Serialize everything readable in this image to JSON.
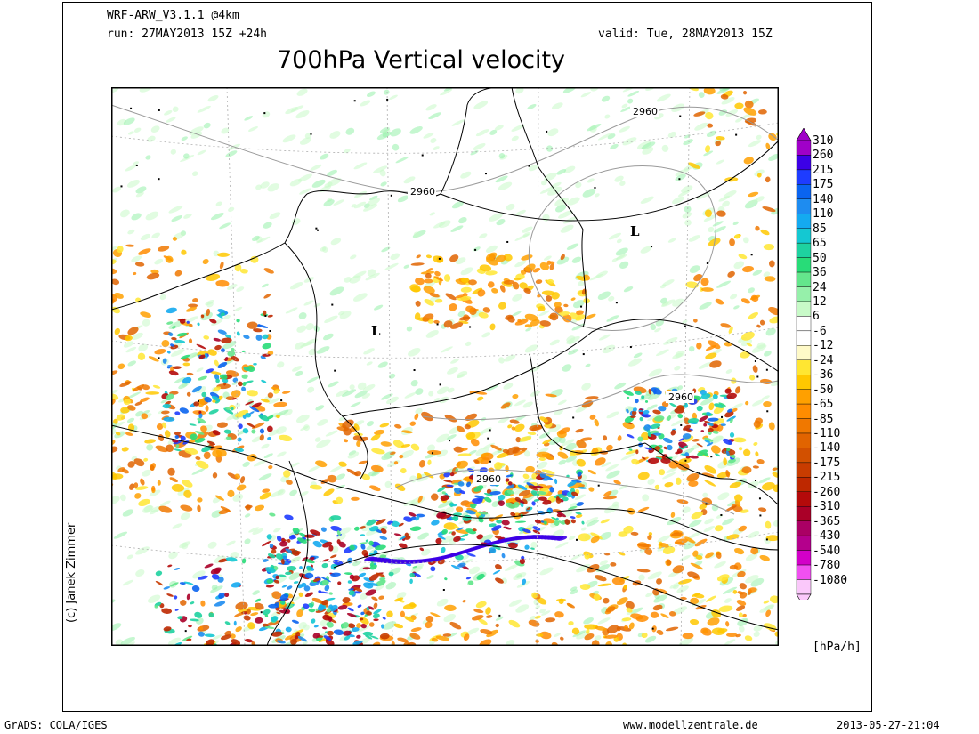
{
  "header": {
    "model": "WRF-ARW_V3.1.1 @4km",
    "run": "run: 27MAY2013 15Z +24h",
    "valid": "valid: Tue, 28MAY2013 15Z",
    "title": "700hPa Vertical velocity"
  },
  "map": {
    "contour_value": "2960",
    "low_marker": "L",
    "colors": {
      "ocean_land": "#ffffff",
      "coast": "#000000",
      "grid": "#aaaaaa",
      "contour": "#999999"
    }
  },
  "colorbar": {
    "unit": "[hPa/h]",
    "levels": [
      {
        "label": "310",
        "color": "#a000c8"
      },
      {
        "label": "260",
        "color": "#3c00e6"
      },
      {
        "label": "215",
        "color": "#1e3cff"
      },
      {
        "label": "175",
        "color": "#0a64f0"
      },
      {
        "label": "140",
        "color": "#1e8cf0"
      },
      {
        "label": "110",
        "color": "#14aaf0"
      },
      {
        "label": "85",
        "color": "#14c8d2"
      },
      {
        "label": "65",
        "color": "#1ed2a0"
      },
      {
        "label": "50",
        "color": "#28dc78"
      },
      {
        "label": "36",
        "color": "#64e68c"
      },
      {
        "label": "24",
        "color": "#96f0aa"
      },
      {
        "label": "12",
        "color": "#c8fac8"
      },
      {
        "label": "6",
        "color": "#ffffff"
      },
      {
        "label": "-6",
        "color": "#ffffff"
      },
      {
        "label": "-12",
        "color": "#fffac8"
      },
      {
        "label": "-24",
        "color": "#ffe632"
      },
      {
        "label": "-36",
        "color": "#ffc800"
      },
      {
        "label": "-50",
        "color": "#ffa000"
      },
      {
        "label": "-65",
        "color": "#ff8c00"
      },
      {
        "label": "-85",
        "color": "#f07800"
      },
      {
        "label": "-110",
        "color": "#e16400"
      },
      {
        "label": "-140",
        "color": "#d25000"
      },
      {
        "label": "-175",
        "color": "#c83c00"
      },
      {
        "label": "-215",
        "color": "#be2800"
      },
      {
        "label": "-260",
        "color": "#b40a0a"
      },
      {
        "label": "-310",
        "color": "#aa0028"
      },
      {
        "label": "-365",
        "color": "#aa0064"
      },
      {
        "label": "-430",
        "color": "#b4008c"
      },
      {
        "label": "-540",
        "color": "#d200c8"
      },
      {
        "label": "-780",
        "color": "#f050f0"
      },
      {
        "label": "-1080",
        "color": "#fac8fa"
      }
    ]
  },
  "footer": {
    "copyright": "(c) Janek Zimmer",
    "grads": "GrADS: COLA/IGES",
    "website": "www.modellzentrale.de",
    "timestamp": "2013-05-27-21:04"
  }
}
